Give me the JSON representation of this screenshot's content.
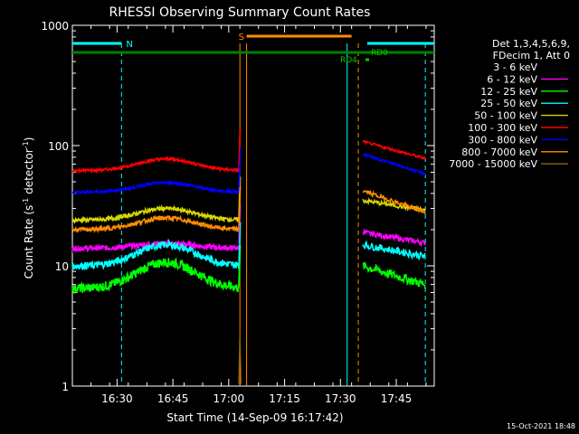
{
  "chart_data": {
    "type": "line",
    "title": "RHESSI Observing Summary Count Rates",
    "xlabel": "Start Time (14-Sep-09 16:17:42)",
    "ylabel_main": "Count Rate (s",
    "ylabel_sup1": "-1",
    "ylabel_mid": " detector",
    "ylabel_sup2": "-1",
    "ylabel_end": ")",
    "yscale": "log",
    "ylim": [
      1,
      1000
    ],
    "xlim_minutes": [
      16.3,
      17.9
    ],
    "x_ticks": [
      {
        "label": "16:30",
        "t": 16.5
      },
      {
        "label": "16:45",
        "t": 16.75
      },
      {
        "label": "17:00",
        "t": 17.0
      },
      {
        "label": "17:15",
        "t": 17.25
      },
      {
        "label": "17:30",
        "t": 17.5
      },
      {
        "label": "17:45",
        "t": 17.75
      }
    ],
    "y_ticks": [
      {
        "label": "1",
        "v": 1
      },
      {
        "label": "10",
        "v": 10
      },
      {
        "label": "100",
        "v": 100
      },
      {
        "label": "1000",
        "v": 1000
      }
    ],
    "legend": {
      "header": [
        "Det 1,3,4,5,6,9,",
        "FDecim 1, Att 0"
      ],
      "entries": [
        {
          "label": "3 - 6 keV",
          "color": "#000000"
        },
        {
          "label": "6 - 12 keV",
          "color": "#ff00ff"
        },
        {
          "label": "12 - 25 keV",
          "color": "#00ff00"
        },
        {
          "label": "25 - 50 keV",
          "color": "#00ffff"
        },
        {
          "label": "50 - 100 keV",
          "color": "#d7d700"
        },
        {
          "label": "100 - 300 keV",
          "color": "#ff0000"
        },
        {
          "label": "300 - 800 keV",
          "color": "#0000ff"
        },
        {
          "label": "800 - 7000 keV",
          "color": "#ff8c00"
        },
        {
          "label": "7000 - 15000 keV",
          "color": "#8b6508"
        }
      ]
    },
    "series": [
      {
        "name": "3 - 6 keV",
        "color": "#000000",
        "pre": 13.5,
        "bump": 1.1,
        "post": [
          18,
          15
        ],
        "noise": 0.05
      },
      {
        "name": "6 - 12 keV",
        "color": "#ff00ff",
        "pre": 14,
        "bump": 1.1,
        "post": [
          19,
          15.5
        ],
        "noise": 0.05
      },
      {
        "name": "12 - 25 keV",
        "color": "#00ff00",
        "pre": 6.5,
        "bump": 1.65,
        "post": [
          10,
          7
        ],
        "noise": 0.09
      },
      {
        "name": "25 - 50 keV",
        "color": "#00ffff",
        "pre": 10,
        "bump": 1.5,
        "post": [
          15,
          12
        ],
        "noise": 0.07
      },
      {
        "name": "50 - 100 keV",
        "color": "#d7d700",
        "pre": 24,
        "bump": 1.25,
        "post": [
          35,
          29
        ],
        "noise": 0.04
      },
      {
        "name": "100 - 300 keV",
        "color": "#ff0000",
        "pre": 62,
        "bump": 1.25,
        "post": [
          108,
          78
        ],
        "noise": 0.025
      },
      {
        "name": "300 - 800 keV",
        "color": "#0000ff",
        "pre": 41,
        "bump": 1.2,
        "post": [
          85,
          58
        ],
        "noise": 0.025
      },
      {
        "name": "800 - 7000 keV",
        "color": "#ff8c00",
        "pre": 20,
        "bump": 1.25,
        "post": [
          42,
          28
        ],
        "noise": 0.04
      }
    ],
    "flag_bars": [
      {
        "label": "N",
        "color": "#00ffff",
        "segments": [
          [
            16.3,
            16.52
          ],
          [
            17.62,
            17.92
          ]
        ],
        "level": "upper"
      },
      {
        "label": "S",
        "color": "#ff8c00",
        "segments": [
          [
            17.08,
            17.55
          ]
        ],
        "level": "top"
      },
      {
        "label": "",
        "color": "#008000",
        "segments": [
          [
            16.3,
            17.92
          ]
        ],
        "level": "middle"
      }
    ],
    "flag_labels": {
      "rd0": "RD0",
      "rd4": "RD4"
    },
    "vlines": [
      {
        "t": 16.52,
        "color": "#00ffff",
        "style": "dashed"
      },
      {
        "t": 17.05,
        "color": "#ff8c00",
        "style": "solid"
      },
      {
        "t": 17.08,
        "color": "#ff8c00",
        "style": "solid"
      },
      {
        "t": 17.53,
        "color": "#00ffff",
        "style": "solid"
      },
      {
        "t": 17.58,
        "color": "#ff8c00",
        "style": "dashed"
      },
      {
        "t": 17.88,
        "color": "#00ffff",
        "style": "dashed"
      }
    ],
    "footer": "15-Oct-2021 18:48"
  }
}
